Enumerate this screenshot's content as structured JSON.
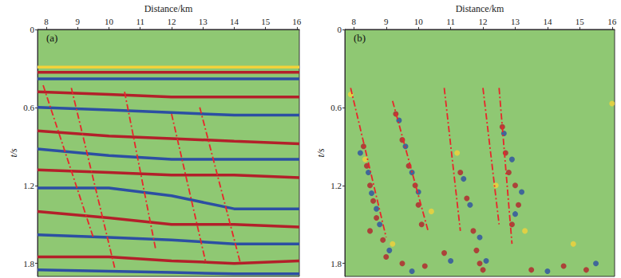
{
  "chart_data": [
    {
      "type": "line",
      "title": "(a)",
      "xlabel": "Distance/km",
      "ylabel": "t/s",
      "xlim": [
        7.72,
        16.08
      ],
      "xticks": [
        8,
        9,
        10,
        11,
        12,
        13,
        14,
        15,
        16
      ],
      "ylim": [
        0,
        1.9
      ],
      "yticks": [
        0,
        0.6,
        1.2,
        1.8
      ],
      "grid": false,
      "series": [
        {
          "color": "#f2d23a",
          "line_style": "solid",
          "x": [
            7.72,
            10,
            12,
            14,
            16.08
          ],
          "values": [
            0.29,
            0.29,
            0.29,
            0.29,
            0.29
          ]
        },
        {
          "color": "#b3202a",
          "line_style": "solid",
          "x": [
            7.72,
            10,
            12,
            14,
            16.08
          ],
          "values": [
            0.33,
            0.33,
            0.33,
            0.33,
            0.33
          ]
        },
        {
          "color": "#2c4fa3",
          "line_style": "solid",
          "x": [
            7.72,
            10,
            12,
            14,
            16.08
          ],
          "values": [
            0.38,
            0.38,
            0.38,
            0.38,
            0.38
          ]
        },
        {
          "color": "#b3202a",
          "line_style": "solid",
          "x": [
            7.72,
            10,
            12,
            14,
            16.08
          ],
          "values": [
            0.48,
            0.5,
            0.52,
            0.52,
            0.52
          ]
        },
        {
          "color": "#2c4fa3",
          "line_style": "solid",
          "x": [
            7.72,
            10,
            12,
            14,
            16.08
          ],
          "values": [
            0.6,
            0.62,
            0.64,
            0.66,
            0.66
          ]
        },
        {
          "color": "#b3202a",
          "line_style": "solid",
          "x": [
            7.72,
            10,
            12,
            14,
            16.08
          ],
          "values": [
            0.78,
            0.82,
            0.84,
            0.86,
            0.88
          ]
        },
        {
          "color": "#2c4fa3",
          "line_style": "solid",
          "x": [
            7.72,
            10,
            12,
            14,
            16.08
          ],
          "values": [
            0.92,
            0.97,
            1.0,
            1.0,
            1.0
          ]
        },
        {
          "color": "#b3202a",
          "line_style": "solid",
          "x": [
            7.72,
            10,
            12,
            14,
            16.08
          ],
          "values": [
            1.08,
            1.1,
            1.12,
            1.12,
            1.14
          ]
        },
        {
          "color": "#2c4fa3",
          "line_style": "solid",
          "x": [
            7.72,
            10,
            12,
            14,
            16.08
          ],
          "values": [
            1.22,
            1.22,
            1.28,
            1.38,
            1.38
          ]
        },
        {
          "color": "#b3202a",
          "line_style": "solid",
          "x": [
            7.72,
            10,
            12,
            14,
            16.08
          ],
          "values": [
            1.4,
            1.45,
            1.5,
            1.5,
            1.52
          ]
        },
        {
          "color": "#2c4fa3",
          "line_style": "solid",
          "x": [
            7.72,
            10,
            12,
            14,
            16.08
          ],
          "values": [
            1.58,
            1.6,
            1.62,
            1.65,
            1.65
          ]
        },
        {
          "color": "#b3202a",
          "line_style": "solid",
          "x": [
            7.72,
            10,
            12,
            14,
            16.08
          ],
          "values": [
            1.75,
            1.75,
            1.78,
            1.8,
            1.78
          ]
        },
        {
          "color": "#2c4fa3",
          "line_style": "solid",
          "x": [
            7.72,
            10,
            12,
            14,
            16.08
          ],
          "values": [
            1.85,
            1.86,
            1.87,
            1.88,
            1.88
          ]
        },
        {
          "color": "#e8262b",
          "line_style": "dashdot",
          "x": [
            7.9,
            9.5
          ],
          "values": [
            0.43,
            1.6
          ]
        },
        {
          "color": "#e8262b",
          "line_style": "dashdot",
          "x": [
            8.8,
            10.2
          ],
          "values": [
            0.45,
            1.85
          ]
        },
        {
          "color": "#e8262b",
          "line_style": "dashdot",
          "x": [
            10.5,
            11.5
          ],
          "values": [
            0.48,
            1.7
          ]
        },
        {
          "color": "#e8262b",
          "line_style": "dashdot",
          "x": [
            12.0,
            13.1
          ],
          "values": [
            0.65,
            1.8
          ]
        },
        {
          "color": "#e8262b",
          "line_style": "dashdot",
          "x": [
            12.9,
            14.2
          ],
          "values": [
            0.6,
            1.8
          ]
        }
      ]
    },
    {
      "type": "scatter",
      "title": "(b)",
      "xlabel": "Distance/km",
      "ylabel": "t/s",
      "xlim": [
        7.72,
        16.08
      ],
      "xticks": [
        8,
        9,
        10,
        11,
        12,
        13,
        14,
        15,
        16
      ],
      "ylim": [
        0,
        1.9
      ],
      "yticks": [
        0,
        0.6,
        1.2,
        1.8
      ],
      "grid": false,
      "series": [
        {
          "color": "#b3202a",
          "marker": "circle",
          "x": [
            8.3,
            8.4,
            8.5,
            8.6,
            8.7,
            8.5,
            8.9,
            9.0,
            9.3,
            9.5,
            9.7,
            9.9,
            10.0,
            10.1,
            11.3,
            11.5,
            11.7,
            11.8,
            11.9,
            12.0,
            12.6,
            12.7,
            12.8,
            13.0,
            13.1,
            12.9,
            9.5,
            10.2,
            13.5,
            14.5,
            15.2,
            10.8
          ],
          "values": [
            0.9,
            1.05,
            1.2,
            1.32,
            1.45,
            1.55,
            1.62,
            1.75,
            0.65,
            0.85,
            1.05,
            1.2,
            1.35,
            1.5,
            1.1,
            1.3,
            1.55,
            1.7,
            1.8,
            1.85,
            0.75,
            0.95,
            1.1,
            1.2,
            1.35,
            1.5,
            1.8,
            1.82,
            1.85,
            1.82,
            1.85,
            1.72
          ]
        },
        {
          "color": "#2c4fa3",
          "marker": "circle",
          "x": [
            8.2,
            8.45,
            8.55,
            8.7,
            8.8,
            9.1,
            9.4,
            9.6,
            9.8,
            10.0,
            11.4,
            11.6,
            11.9,
            12.1,
            12.65,
            12.9,
            13.2,
            13.0,
            9.8,
            11.0,
            14.0,
            15.5
          ],
          "values": [
            0.95,
            1.1,
            1.26,
            1.38,
            1.5,
            1.7,
            0.7,
            0.9,
            1.1,
            1.25,
            1.15,
            1.35,
            1.6,
            1.78,
            0.8,
            1.0,
            1.25,
            1.42,
            1.86,
            1.78,
            1.86,
            1.8
          ]
        },
        {
          "color": "#f2d23a",
          "marker": "circle",
          "x": [
            7.9,
            8.35,
            9.2,
            10.4,
            11.2,
            12.4,
            13.3,
            14.8,
            16.0
          ],
          "values": [
            0.5,
            1.0,
            1.65,
            1.4,
            0.95,
            1.2,
            1.55,
            1.65,
            0.57
          ]
        },
        {
          "type": "line",
          "color": "#e8262b",
          "line_style": "dashdot",
          "x": [
            7.9,
            9.0
          ],
          "values": [
            0.45,
            1.6
          ]
        },
        {
          "type": "line",
          "color": "#e8262b",
          "line_style": "dashdot",
          "x": [
            9.2,
            10.3
          ],
          "values": [
            0.55,
            1.55
          ]
        },
        {
          "type": "line",
          "color": "#e8262b",
          "line_style": "dashdot",
          "x": [
            10.8,
            11.3
          ],
          "values": [
            0.45,
            1.55
          ]
        },
        {
          "type": "line",
          "color": "#e8262b",
          "line_style": "dashdot",
          "x": [
            12.0,
            12.5
          ],
          "values": [
            0.45,
            1.5
          ]
        },
        {
          "type": "line",
          "color": "#e8262b",
          "line_style": "dashdot",
          "x": [
            12.5,
            12.9
          ],
          "values": [
            0.45,
            1.65
          ]
        }
      ]
    }
  ]
}
